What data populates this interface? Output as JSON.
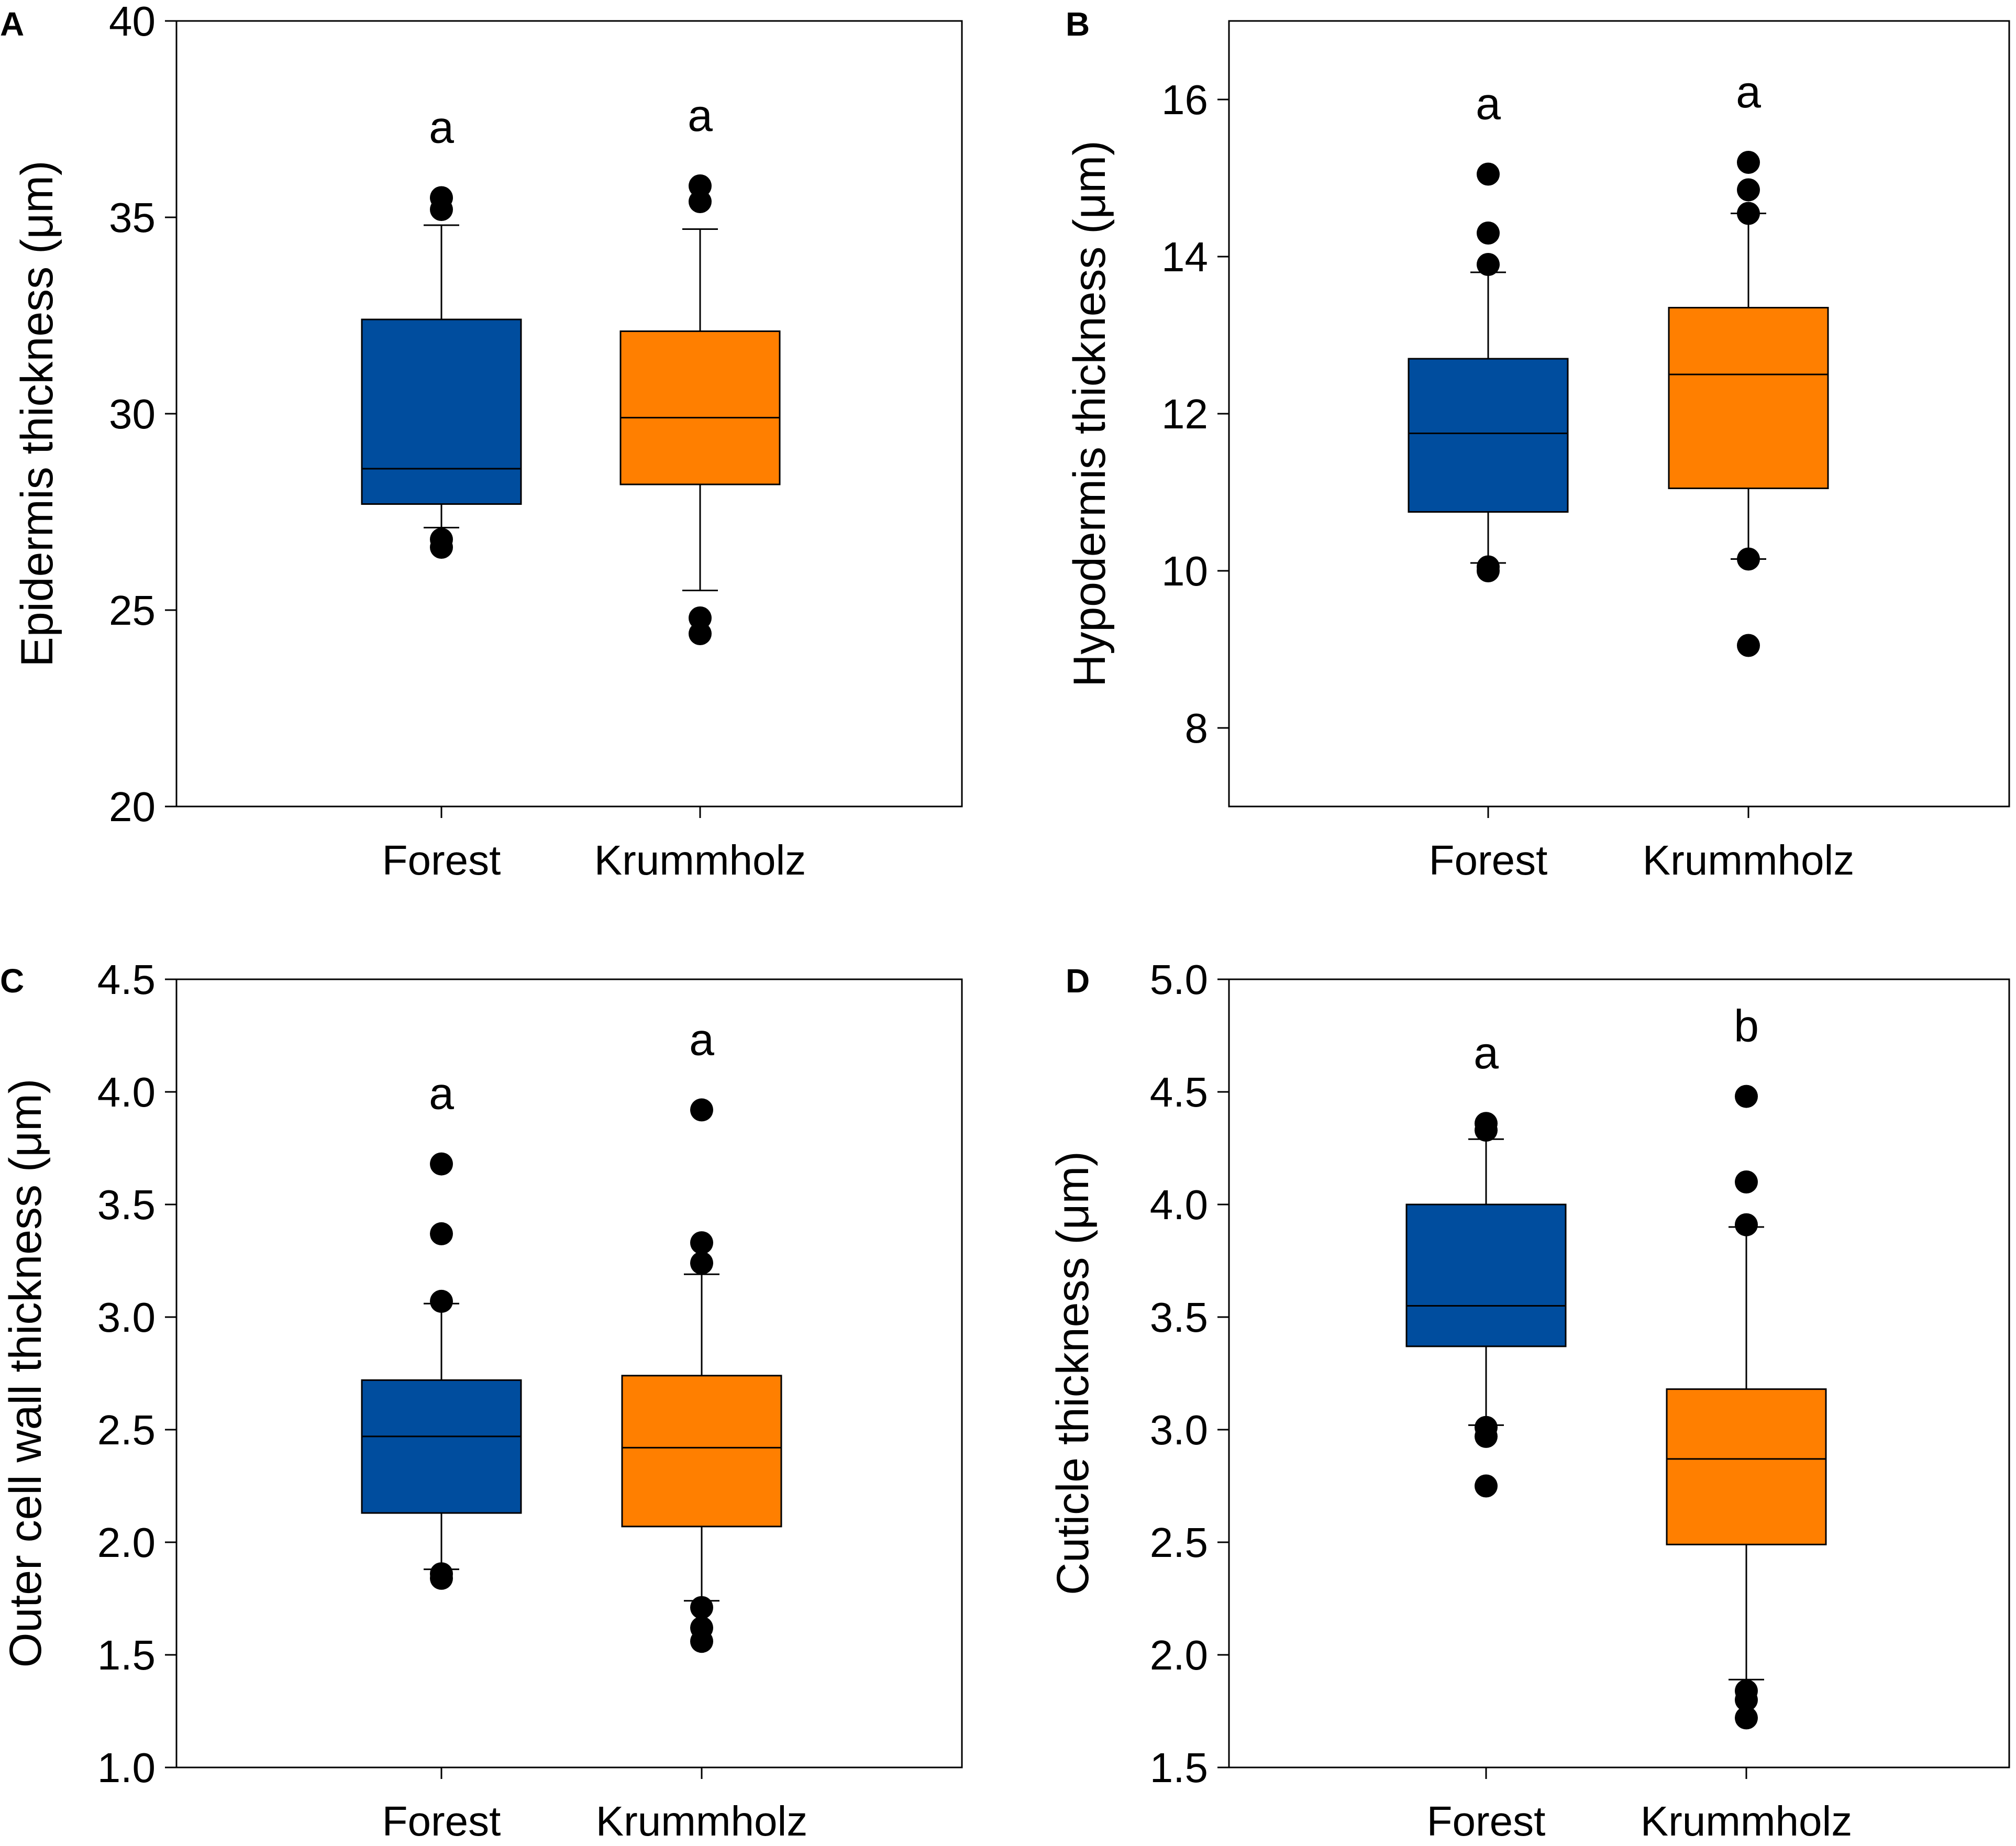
{
  "chart_data": [
    {
      "panel": "A",
      "type": "box",
      "title": "",
      "xlabel": "",
      "ylabel": "Epidermis thickness (μm)",
      "ylim": [
        20,
        40
      ],
      "yticks": [
        "20",
        "25",
        "30",
        "35",
        "40"
      ],
      "ytick_values": [
        20,
        25,
        30,
        35,
        40
      ],
      "categories": [
        "Forest",
        "Krummholz"
      ],
      "series": [
        {
          "name": "Forest",
          "color": "#004d9e",
          "q1": 27.7,
          "median": 28.6,
          "q3": 32.4,
          "whisker_low": 27.1,
          "whisker_high": 34.8,
          "outliers": [
            35.5,
            35.2,
            26.8,
            26.6
          ],
          "letter": "a"
        },
        {
          "name": "Krummholz",
          "color": "#ff7f00",
          "q1": 28.2,
          "median": 29.9,
          "q3": 32.1,
          "whisker_low": 25.5,
          "whisker_high": 34.7,
          "outliers": [
            35.8,
            35.4,
            24.8,
            24.4
          ],
          "letter": "a"
        }
      ]
    },
    {
      "panel": "B",
      "type": "box",
      "title": "",
      "xlabel": "",
      "ylabel": "Hypodermis thickness (μm)",
      "ylim": [
        7,
        17
      ],
      "yticks": [
        "8",
        "10",
        "12",
        "14",
        "16"
      ],
      "ytick_values": [
        8,
        10,
        12,
        14,
        16
      ],
      "categories": [
        "Forest",
        "Krummholz"
      ],
      "series": [
        {
          "name": "Forest",
          "color": "#004d9e",
          "q1": 10.75,
          "median": 11.75,
          "q3": 12.7,
          "whisker_low": 10.1,
          "whisker_high": 13.8,
          "outliers": [
            15.05,
            14.3,
            13.9,
            10.05,
            10.0
          ],
          "letter": "a"
        },
        {
          "name": "Krummholz",
          "color": "#ff7f00",
          "q1": 11.05,
          "median": 12.5,
          "q3": 13.35,
          "whisker_low": 10.15,
          "whisker_high": 14.55,
          "outliers": [
            15.2,
            14.85,
            14.55,
            10.15,
            9.05
          ],
          "letter": "a"
        }
      ]
    },
    {
      "panel": "C",
      "type": "box",
      "title": "",
      "xlabel": "",
      "ylabel": "Outer cell wall thickness (μm)",
      "ylim": [
        1.0,
        4.5
      ],
      "yticks": [
        "1.0",
        "1.5",
        "2.0",
        "2.5",
        "3.0",
        "3.5",
        "4.0",
        "4.5"
      ],
      "ytick_values": [
        1.0,
        1.5,
        2.0,
        2.5,
        3.0,
        3.5,
        4.0,
        4.5
      ],
      "categories": [
        "Forest",
        "Krummholz"
      ],
      "series": [
        {
          "name": "Forest",
          "color": "#004d9e",
          "q1": 2.13,
          "median": 2.47,
          "q3": 2.72,
          "whisker_low": 1.88,
          "whisker_high": 3.06,
          "outliers": [
            3.68,
            3.37,
            3.07,
            1.86,
            1.84
          ],
          "letter": "a"
        },
        {
          "name": "Krummholz",
          "color": "#ff7f00",
          "q1": 2.07,
          "median": 2.42,
          "q3": 2.74,
          "whisker_low": 1.74,
          "whisker_high": 3.19,
          "outliers": [
            3.92,
            3.33,
            3.24,
            1.71,
            1.62,
            1.56
          ],
          "letter": "a"
        }
      ]
    },
    {
      "panel": "D",
      "type": "box",
      "title": "",
      "xlabel": "",
      "ylabel": "Cuticle thickness (μm)",
      "ylim": [
        1.5,
        5.0
      ],
      "yticks": [
        "1.5",
        "2.0",
        "2.5",
        "3.0",
        "3.5",
        "4.0",
        "4.5",
        "5.0"
      ],
      "ytick_values": [
        1.5,
        2.0,
        2.5,
        3.0,
        3.5,
        4.0,
        4.5,
        5.0
      ],
      "categories": [
        "Forest",
        "Krummholz"
      ],
      "series": [
        {
          "name": "Forest",
          "color": "#004d9e",
          "q1": 3.37,
          "median": 3.55,
          "q3": 4.0,
          "whisker_low": 3.02,
          "whisker_high": 4.29,
          "outliers": [
            4.36,
            4.33,
            3.01,
            2.97,
            2.75
          ],
          "letter": "a"
        },
        {
          "name": "Krummholz",
          "color": "#ff7f00",
          "q1": 2.49,
          "median": 2.87,
          "q3": 3.18,
          "whisker_low": 1.89,
          "whisker_high": 3.9,
          "outliers": [
            4.48,
            4.1,
            3.91,
            1.84,
            1.8,
            1.72
          ],
          "letter": "b"
        }
      ]
    }
  ]
}
